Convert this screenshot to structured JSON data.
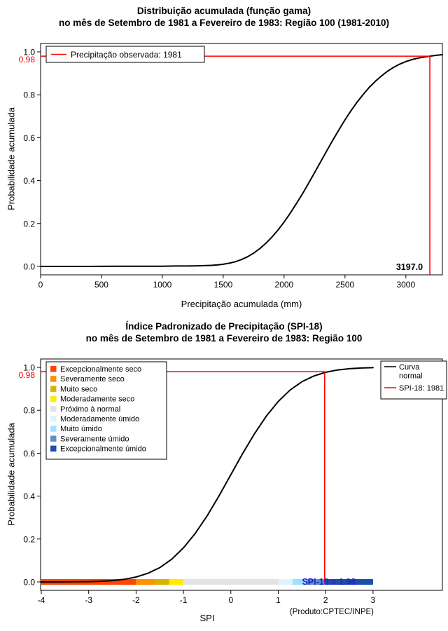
{
  "chart_data": [
    {
      "type": "line",
      "title": "Distribuição acumulada (função gama)",
      "subtitle": "no mês de Setembro de 1981 a Fevereiro de 1983: Região 100 (1981-2010)",
      "xlabel": "Precipitação acumulada (mm)",
      "ylabel": "Probabilidade acumulada",
      "xlim": [
        0,
        3300
      ],
      "ylim": [
        0,
        1
      ],
      "xticks": [
        "0",
        "500",
        "1000",
        "1500",
        "2000",
        "2500",
        "3000"
      ],
      "xtick_values": [
        0,
        500,
        1000,
        1500,
        2000,
        2500,
        3000
      ],
      "yticks": [
        "0.0",
        "0.2",
        "0.4",
        "0.6",
        "0.8",
        "1.0"
      ],
      "ytick_values": [
        0,
        0.2,
        0.4,
        0.6,
        0.8,
        1.0
      ],
      "highlight": {
        "prob": 0.98,
        "prob_label": "0.98",
        "value": 3197.0,
        "value_label": "3197.0",
        "color": "#ff0000",
        "value_label_color": "#000000"
      },
      "legend": [
        {
          "label": "Precipitação observada: 1981",
          "color": "#ff0000",
          "type": "line"
        }
      ],
      "series": [
        {
          "name": "Distribuição gama acumulada",
          "color": "#000000",
          "x": [
            0,
            200,
            400,
            600,
            800,
            1000,
            1100,
            1200,
            1300,
            1400,
            1450,
            1500,
            1550,
            1600,
            1650,
            1700,
            1750,
            1800,
            1850,
            1900,
            1950,
            2000,
            2050,
            2100,
            2150,
            2200,
            2250,
            2300,
            2350,
            2400,
            2450,
            2500,
            2550,
            2600,
            2650,
            2700,
            2750,
            2800,
            2850,
            2900,
            2950,
            3000,
            3050,
            3100,
            3150,
            3197,
            3250,
            3300
          ],
          "y": [
            0,
            0,
            0,
            0.001,
            0.001,
            0.001,
            0.002,
            0.002,
            0.003,
            0.005,
            0.007,
            0.01,
            0.015,
            0.022,
            0.032,
            0.045,
            0.062,
            0.083,
            0.108,
            0.137,
            0.17,
            0.207,
            0.248,
            0.292,
            0.338,
            0.387,
            0.437,
            0.488,
            0.539,
            0.589,
            0.637,
            0.683,
            0.726,
            0.766,
            0.802,
            0.835,
            0.863,
            0.888,
            0.91,
            0.928,
            0.943,
            0.955,
            0.964,
            0.971,
            0.976,
            0.98,
            0.984,
            0.987
          ]
        }
      ]
    },
    {
      "type": "line",
      "title": "Índice Padronizado de Precipitação (SPI-18)",
      "subtitle": "no mês de Setembro de 1981 a Fevereiro de 1983: Região 100",
      "xlabel": "SPI",
      "ylabel": "Probabilidade acumulada",
      "note": "(Produto:CPTEC/INPE)",
      "xlim": [
        -4,
        3
      ],
      "ylim": [
        0,
        1
      ],
      "xticks": [
        "-4",
        "-3",
        "-2",
        "-1",
        "0",
        "1",
        "2",
        "3"
      ],
      "xtick_values": [
        -4,
        -3,
        -2,
        -1,
        0,
        1,
        2,
        3
      ],
      "yticks": [
        "0.0",
        "0.2",
        "0.4",
        "0.6",
        "0.8",
        "1.0"
      ],
      "ytick_values": [
        0,
        0.2,
        0.4,
        0.6,
        0.8,
        1.0
      ],
      "highlight": {
        "prob": 0.98,
        "prob_label": "0.98",
        "value": 1.98,
        "value_label": "SPI-18 = 1.98",
        "color": "#ff0000",
        "value_label_color": "#2222cc"
      },
      "legend_right": [
        {
          "label_lines": [
            "Curva",
            "normal"
          ],
          "color": "#000000",
          "type": "line"
        },
        {
          "label_lines": [
            "SPI-18: 1981"
          ],
          "color": "#ff0000",
          "type": "line"
        }
      ],
      "categories": [
        {
          "label": "Excepcionalmente seco",
          "color": "#ff4500",
          "from": -4,
          "to": -2
        },
        {
          "label": "Severamente seco",
          "color": "#ff9000",
          "from": -2,
          "to": -1.6
        },
        {
          "label": "Muito seco",
          "color": "#d9b200",
          "from": -1.6,
          "to": -1.3
        },
        {
          "label": "Moderadamente seco",
          "color": "#ffec00",
          "from": -1.3,
          "to": -1
        },
        {
          "label": "Próximo à normal",
          "color": "#e3e3e3",
          "from": -1,
          "to": 1
        },
        {
          "label": "Moderadamente úmido",
          "color": "#ddf3ff",
          "from": 1,
          "to": 1.3
        },
        {
          "label": "Muito úmido",
          "color": "#9fdfff",
          "from": 1.3,
          "to": 1.6
        },
        {
          "label": "Severamente úmido",
          "color": "#5c8fcb",
          "from": 1.6,
          "to": 2
        },
        {
          "label": "Excepcionalmente úmido",
          "color": "#1c4fa8",
          "from": 2,
          "to": 3
        }
      ],
      "series": [
        {
          "name": "Curva normal",
          "color": "#000000",
          "x": [
            -4,
            -3.75,
            -3.5,
            -3.25,
            -3,
            -2.75,
            -2.5,
            -2.25,
            -2,
            -1.75,
            -1.5,
            -1.25,
            -1,
            -0.75,
            -0.5,
            -0.25,
            0,
            0.25,
            0.5,
            0.75,
            1,
            1.25,
            1.5,
            1.75,
            2,
            2.25,
            2.5,
            2.75,
            3
          ],
          "y": [
            0.0,
            0.0001,
            0.0002,
            0.0006,
            0.0013,
            0.003,
            0.0062,
            0.0122,
            0.0228,
            0.0401,
            0.0668,
            0.1056,
            0.1587,
            0.2266,
            0.3085,
            0.4013,
            0.5,
            0.5987,
            0.6915,
            0.7734,
            0.8413,
            0.8944,
            0.9332,
            0.9599,
            0.9772,
            0.9878,
            0.9938,
            0.997,
            0.9987
          ]
        }
      ]
    }
  ]
}
